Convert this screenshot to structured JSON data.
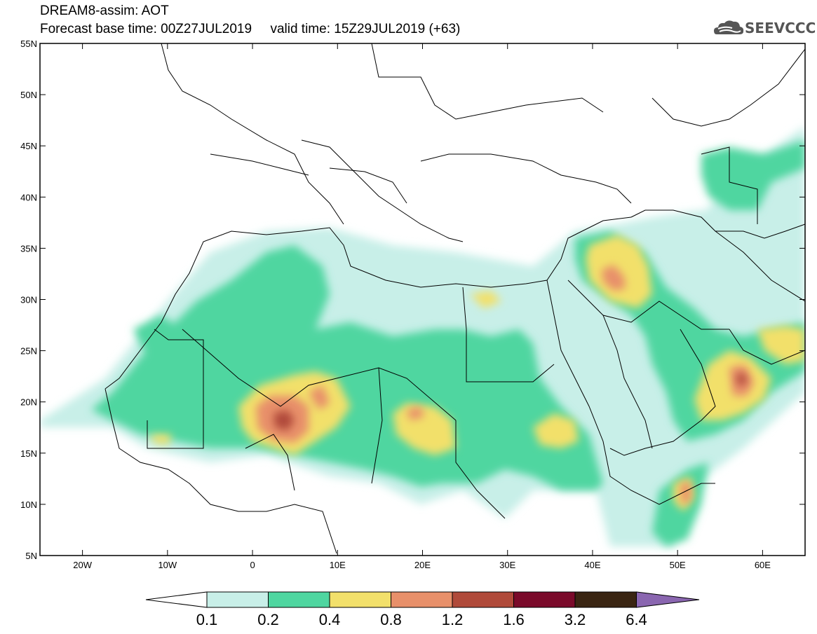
{
  "header": {
    "title_line1": "DREAM8-assim: AOT",
    "title_line2": "Forecast base time: 00Z27JUL2019     valid time: 15Z29JUL2019 (+63)",
    "logo_text": "SEEVCCC"
  },
  "axes": {
    "lat_labels": [
      "55N",
      "50N",
      "45N",
      "40N",
      "35N",
      "30N",
      "25N",
      "20N",
      "15N",
      "10N",
      "5N"
    ],
    "lon_labels": [
      "20W",
      "10W",
      "0",
      "10E",
      "20E",
      "30E",
      "40E",
      "50E",
      "60E"
    ]
  },
  "colorbar": {
    "labels": [
      "0.1",
      "0.2",
      "0.4",
      "0.8",
      "1.2",
      "1.6",
      "3.2",
      "6.4"
    ],
    "colors": [
      "#ffffff",
      "#c8efe8",
      "#4fd6a0",
      "#f2e06b",
      "#e8906a",
      "#b04a3a",
      "#7a0a2a",
      "#3a2512",
      "#8a66b0"
    ]
  },
  "map_colors": {
    "c1": "#c8efe8",
    "c2": "#4fd6a0",
    "c3": "#f2e06b",
    "c4": "#e8906a",
    "c5": "#b04a3a",
    "c6": "#7a0a2a"
  }
}
